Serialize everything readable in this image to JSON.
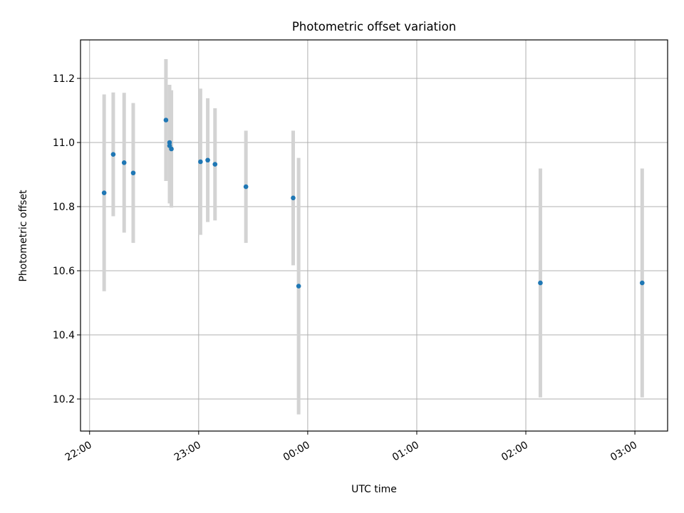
{
  "chart_data": {
    "type": "scatter",
    "title": "Photometric offset variation",
    "xlabel": "UTC time",
    "ylabel": "Photometric offset",
    "x_unit": "time (UTC, HH:MM) — points span 21:55 on day 1 to 03:10 on day 2",
    "xlim": [
      "21:55",
      "03:18"
    ],
    "ylim": [
      10.1,
      11.32
    ],
    "x_ticks": [
      "22:00",
      "23:00",
      "00:00",
      "01:00",
      "02:00",
      "03:00"
    ],
    "y_ticks": [
      "10.2",
      "10.4",
      "10.6",
      "10.8",
      "11.0",
      "11.2"
    ],
    "grid": true,
    "points": [
      {
        "x": "22:08",
        "y": 10.843,
        "err": 0.307
      },
      {
        "x": "22:13",
        "y": 10.963,
        "err": 0.193
      },
      {
        "x": "22:19",
        "y": 10.937,
        "err": 0.218
      },
      {
        "x": "22:24",
        "y": 10.905,
        "err": 0.218
      },
      {
        "x": "22:42",
        "y": 11.07,
        "err": 0.19
      },
      {
        "x": "22:44",
        "y": 11.0,
        "err": 0.18
      },
      {
        "x": "22:44",
        "y": 10.99,
        "err": 0.18
      },
      {
        "x": "22:45",
        "y": 10.98,
        "err": 0.183
      },
      {
        "x": "23:01",
        "y": 10.94,
        "err": 0.228
      },
      {
        "x": "23:05",
        "y": 10.945,
        "err": 0.193
      },
      {
        "x": "23:09",
        "y": 10.932,
        "err": 0.175
      },
      {
        "x": "23:26",
        "y": 10.862,
        "err": 0.175
      },
      {
        "x": "23:52",
        "y": 10.827,
        "err": 0.21
      },
      {
        "x": "23:55",
        "y": 10.552,
        "err": 0.4
      },
      {
        "x": "02:08",
        "y": 10.562,
        "err": 0.357
      },
      {
        "x": "03:04",
        "y": 10.562,
        "err": 0.357
      }
    ],
    "marker_color": "#1f77b4",
    "errorbar_color": "#d3d3d3"
  }
}
